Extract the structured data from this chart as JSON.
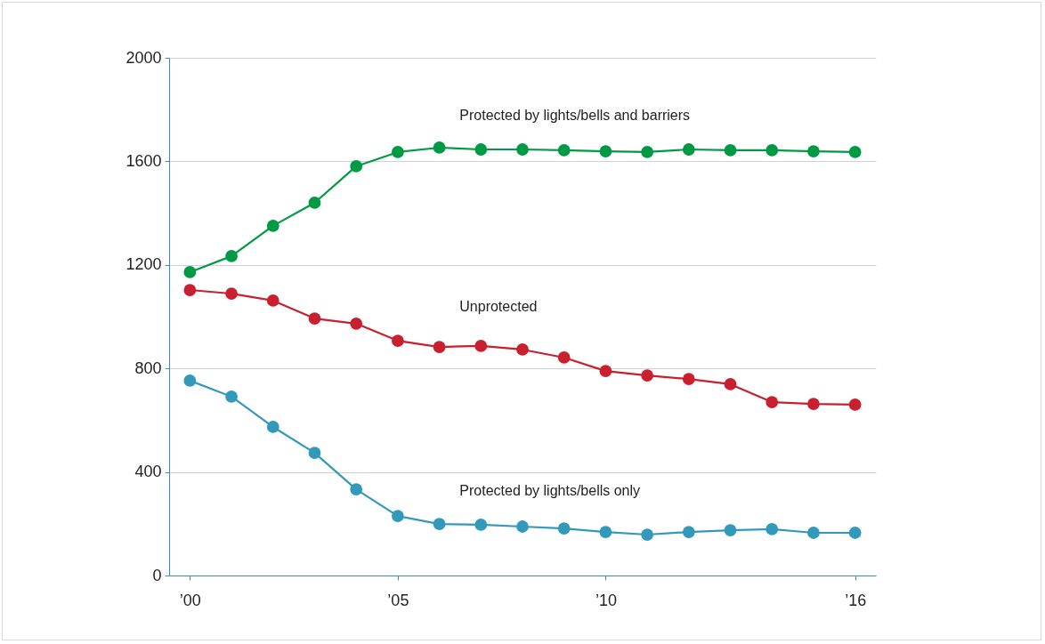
{
  "chart_data": {
    "type": "line",
    "x": [
      2000,
      2001,
      2002,
      2003,
      2004,
      2005,
      2006,
      2007,
      2008,
      2009,
      2010,
      2011,
      2012,
      2013,
      2014,
      2015,
      2016
    ],
    "series": [
      {
        "name": "Protected by lights/bells and barriers",
        "color": "#009a44",
        "values": [
          1172,
          1234,
          1351,
          1440,
          1581,
          1636,
          1653,
          1646,
          1646,
          1643,
          1639,
          1636,
          1646,
          1643,
          1643,
          1639,
          1636
        ]
      },
      {
        "name": "Unprotected",
        "color": "#c8202f",
        "values": [
          1103,
          1089,
          1062,
          993,
          973,
          907,
          883,
          887,
          873,
          842,
          790,
          773,
          759,
          739,
          670,
          663,
          660
        ]
      },
      {
        "name": "Protected by lights/bells only",
        "color": "#3399bb",
        "values": [
          753,
          691,
          574,
          474,
          333,
          230,
          199,
          196,
          189,
          182,
          168,
          158,
          168,
          175,
          179,
          165,
          165
        ]
      }
    ],
    "xlim": [
      1999.5,
      2016.5
    ],
    "xticks": [
      {
        "value": 2000,
        "label": "’00"
      },
      {
        "value": 2005,
        "label": "’05"
      },
      {
        "value": 2010,
        "label": "’10"
      },
      {
        "value": 2016,
        "label": "’16"
      }
    ],
    "ylim": [
      0,
      2000
    ],
    "yticks": [
      0,
      400,
      800,
      1200,
      1600,
      2000
    ],
    "grid": "y",
    "legend": false,
    "marker": "circle",
    "line_style": "solid"
  }
}
